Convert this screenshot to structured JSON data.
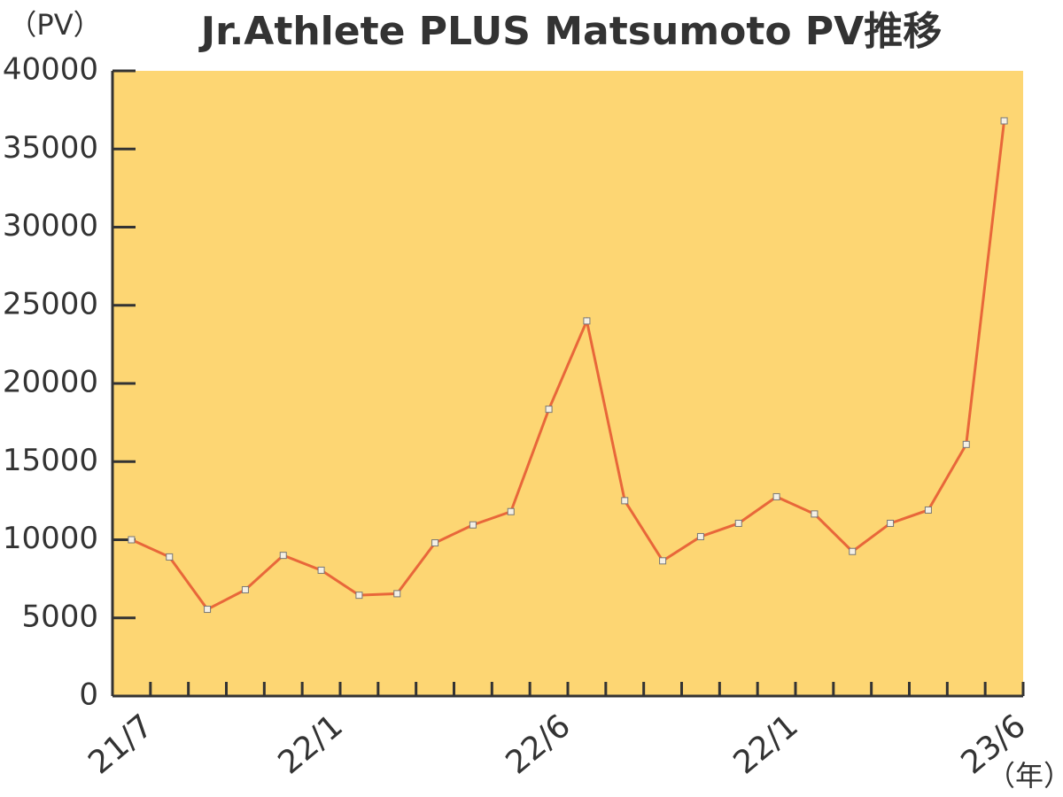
{
  "chart_data": {
    "type": "line",
    "title": "Jr.Athlete PLUS Matsumoto PV推移",
    "y_label": "（PV）",
    "x_label": "（年）",
    "categories": [
      "21/7",
      null,
      null,
      null,
      null,
      "22/1",
      null,
      null,
      null,
      null,
      null,
      "22/6",
      null,
      null,
      null,
      null,
      null,
      "22/1",
      null,
      null,
      null,
      null,
      null,
      "23/6"
    ],
    "series": [
      {
        "color": "#e8673a",
        "values": [
          10000,
          8900,
          5550,
          6800,
          9000,
          8050,
          6450,
          6550,
          9800,
          10950,
          11800,
          18350,
          24000,
          12500,
          8650,
          10200,
          11050,
          12750,
          11650,
          9250,
          11050,
          11900,
          16100,
          36800
        ]
      }
    ],
    "ylim": [
      0,
      40000
    ],
    "yticks": [
      0,
      5000,
      10000,
      15000,
      20000,
      25000,
      30000,
      35000,
      40000
    ],
    "plot_background": "#fdd673"
  }
}
